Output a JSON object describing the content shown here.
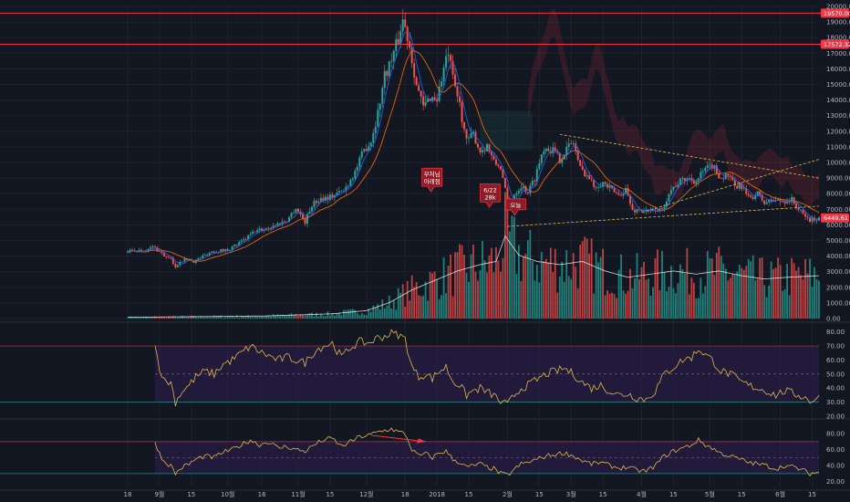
{
  "chart_data": {
    "type": "candlestick",
    "symbol_pair": "BTC/USD",
    "grid": true,
    "colors": {
      "background": "#131722",
      "up": "#26a69a",
      "down": "#ef5350",
      "resistance": "#f23645",
      "ma_fast": "#2962ff",
      "ma_slow": "#ff6d00",
      "oscillator": "#e0b84c",
      "band_fill": "#2e1d4f",
      "volume_ma": "#ffffff"
    },
    "price_axis": {
      "ylim": [
        0,
        20000
      ],
      "ticks": [
        "20000.00",
        "19000.00",
        "18000.00",
        "17000.00",
        "16000.00",
        "15000.00",
        "14000.00",
        "13000.00",
        "12000.00",
        "11000.00",
        "10000.00",
        "9000.00",
        "8000.00",
        "7000.00",
        "6000.00",
        "5000.00",
        "4000.00",
        "3000.00",
        "2000.00",
        "1000.00",
        "0.00"
      ],
      "tick_values": [
        20000,
        19000,
        18000,
        17000,
        16000,
        15000,
        14000,
        13000,
        12000,
        11000,
        10000,
        9000,
        8000,
        7000,
        6000,
        5000,
        4000,
        3000,
        2000,
        1000,
        0
      ]
    },
    "price_tags": [
      {
        "label": "19570.00",
        "value": 19570
      },
      {
        "label": "17572.32",
        "value": 17572
      },
      {
        "label": "6449.61",
        "value": 6450
      }
    ],
    "horizontal_levels": [
      19570,
      17572
    ],
    "x_axis": {
      "ticks": [
        {
          "label": "18",
          "t": 0
        },
        {
          "label": "9월",
          "t": 14
        },
        {
          "label": "15",
          "t": 28
        },
        {
          "label": "10월",
          "t": 44
        },
        {
          "label": "16",
          "t": 59
        },
        {
          "label": "11월",
          "t": 75
        },
        {
          "label": "15",
          "t": 89
        },
        {
          "label": "12월",
          "t": 105
        },
        {
          "label": "18",
          "t": 122
        },
        {
          "label": "2018",
          "t": 136
        },
        {
          "label": "15",
          "t": 150
        },
        {
          "label": "2월",
          "t": 167
        },
        {
          "label": "15",
          "t": 181
        },
        {
          "label": "3월",
          "t": 195
        },
        {
          "label": "15",
          "t": 209
        },
        {
          "label": "4월",
          "t": 226
        },
        {
          "label": "15",
          "t": 240
        },
        {
          "label": "5월",
          "t": 256
        },
        {
          "label": "15",
          "t": 270
        },
        {
          "label": "6월",
          "t": 287
        },
        {
          "label": "15",
          "t": 301
        }
      ],
      "t_range": [
        0,
        304
      ]
    },
    "price_path": [
      [
        0,
        4300
      ],
      [
        5,
        4350
      ],
      [
        9,
        4400
      ],
      [
        11,
        4600
      ],
      [
        14,
        4300
      ],
      [
        17,
        3900
      ],
      [
        19,
        3800
      ],
      [
        21,
        3250
      ],
      [
        23,
        3700
      ],
      [
        27,
        3800
      ],
      [
        29,
        3650
      ],
      [
        32,
        3900
      ],
      [
        37,
        4300
      ],
      [
        44,
        4400
      ],
      [
        50,
        4900
      ],
      [
        56,
        5600
      ],
      [
        62,
        5800
      ],
      [
        65,
        6000
      ],
      [
        70,
        6300
      ],
      [
        74,
        7100
      ],
      [
        78,
        6200
      ],
      [
        81,
        7300
      ],
      [
        85,
        7700
      ],
      [
        89,
        7800
      ],
      [
        95,
        8200
      ],
      [
        100,
        9400
      ],
      [
        104,
        10800
      ],
      [
        107,
        11400
      ],
      [
        110,
        13200
      ],
      [
        113,
        15600
      ],
      [
        116,
        16600
      ],
      [
        119,
        17900
      ],
      [
        121,
        19200
      ],
      [
        124,
        17500
      ],
      [
        127,
        15000
      ],
      [
        130,
        13500
      ],
      [
        133,
        14200
      ],
      [
        136,
        14100
      ],
      [
        139,
        16000
      ],
      [
        141,
        17000
      ],
      [
        143,
        15300
      ],
      [
        146,
        13700
      ],
      [
        149,
        11300
      ],
      [
        152,
        11800
      ],
      [
        155,
        10700
      ],
      [
        158,
        11100
      ],
      [
        161,
        10000
      ],
      [
        164,
        9700
      ],
      [
        166,
        8200
      ],
      [
        168,
        6900
      ],
      [
        170,
        8000
      ],
      [
        173,
        8500
      ],
      [
        176,
        8100
      ],
      [
        179,
        9000
      ],
      [
        183,
        11000
      ],
      [
        187,
        10800
      ],
      [
        190,
        10200
      ],
      [
        193,
        10900
      ],
      [
        196,
        11300
      ],
      [
        199,
        9600
      ],
      [
        202,
        9200
      ],
      [
        205,
        8500
      ],
      [
        209,
        8700
      ],
      [
        213,
        8200
      ],
      [
        216,
        7900
      ],
      [
        219,
        8300
      ],
      [
        222,
        6900
      ],
      [
        225,
        7000
      ],
      [
        229,
        6800
      ],
      [
        232,
        7000
      ],
      [
        235,
        6900
      ],
      [
        238,
        8100
      ],
      [
        242,
        8700
      ],
      [
        246,
        9000
      ],
      [
        250,
        8800
      ],
      [
        253,
        9400
      ],
      [
        257,
        9800
      ],
      [
        261,
        9000
      ],
      [
        264,
        9200
      ],
      [
        267,
        8400
      ],
      [
        270,
        8500
      ],
      [
        273,
        7700
      ],
      [
        277,
        8000
      ],
      [
        280,
        7400
      ],
      [
        284,
        7600
      ],
      [
        288,
        7500
      ],
      [
        292,
        7600
      ],
      [
        296,
        6800
      ],
      [
        300,
        6300
      ],
      [
        304,
        6450
      ]
    ],
    "volume_path": [
      [
        0,
        40
      ],
      [
        30,
        60
      ],
      [
        60,
        80
      ],
      [
        90,
        150
      ],
      [
        105,
        250
      ],
      [
        115,
        500
      ],
      [
        125,
        900
      ],
      [
        135,
        1200
      ],
      [
        145,
        1500
      ],
      [
        155,
        1700
      ],
      [
        162,
        1800
      ],
      [
        166,
        2600
      ],
      [
        172,
        2000
      ],
      [
        180,
        1800
      ],
      [
        190,
        1700
      ],
      [
        200,
        1800
      ],
      [
        210,
        1500
      ],
      [
        220,
        1300
      ],
      [
        230,
        1400
      ],
      [
        240,
        1500
      ],
      [
        250,
        1400
      ],
      [
        260,
        1500
      ],
      [
        270,
        1350
      ],
      [
        280,
        1250
      ],
      [
        290,
        1300
      ],
      [
        304,
        1350
      ]
    ],
    "volume_ylim": [
      0,
      4000
    ],
    "annotations": [
      {
        "text": [
          "부처님",
          "아래점"
        ],
        "t": 127,
        "price": 8000
      },
      {
        "text": [
          "6/22",
          "28k"
        ],
        "t": 151,
        "price": 7000
      },
      {
        "text": [
          "오늘"
        ],
        "t": 167,
        "price": 6500
      }
    ],
    "rsi": {
      "ylim": [
        20,
        85
      ],
      "ticks": [
        "80.00",
        "70.00",
        "60.00",
        "50.00",
        "40.00",
        "30.00",
        "20.00"
      ],
      "tick_values": [
        80,
        70,
        60,
        50,
        40,
        30,
        20
      ],
      "band": [
        30,
        70
      ],
      "path": [
        [
          12,
          70
        ],
        [
          14,
          55
        ],
        [
          16,
          45
        ],
        [
          19,
          44
        ],
        [
          21,
          30
        ],
        [
          24,
          38
        ],
        [
          27,
          42
        ],
        [
          30,
          48
        ],
        [
          34,
          52
        ],
        [
          38,
          50
        ],
        [
          42,
          57
        ],
        [
          46,
          60
        ],
        [
          50,
          65
        ],
        [
          54,
          70
        ],
        [
          58,
          66
        ],
        [
          62,
          63
        ],
        [
          66,
          60
        ],
        [
          70,
          62
        ],
        [
          74,
          60
        ],
        [
          78,
          58
        ],
        [
          82,
          66
        ],
        [
          86,
          70
        ],
        [
          90,
          72
        ],
        [
          94,
          62
        ],
        [
          98,
          69
        ],
        [
          102,
          73
        ],
        [
          106,
          72
        ],
        [
          110,
          76
        ],
        [
          113,
          77
        ],
        [
          116,
          79
        ],
        [
          119,
          78
        ],
        [
          122,
          75
        ],
        [
          125,
          55
        ],
        [
          128,
          48
        ],
        [
          131,
          50
        ],
        [
          134,
          47
        ],
        [
          137,
          52
        ],
        [
          140,
          55
        ],
        [
          143,
          45
        ],
        [
          146,
          42
        ],
        [
          149,
          35
        ],
        [
          152,
          38
        ],
        [
          155,
          40
        ],
        [
          158,
          37
        ],
        [
          161,
          35
        ],
        [
          164,
          30
        ],
        [
          167,
          28
        ],
        [
          170,
          35
        ],
        [
          173,
          40
        ],
        [
          176,
          42
        ],
        [
          180,
          46
        ],
        [
          184,
          50
        ],
        [
          188,
          52
        ],
        [
          192,
          54
        ],
        [
          196,
          50
        ],
        [
          200,
          44
        ],
        [
          204,
          40
        ],
        [
          208,
          42
        ],
        [
          212,
          38
        ],
        [
          216,
          35
        ],
        [
          220,
          36
        ],
        [
          224,
          33
        ],
        [
          228,
          32
        ],
        [
          232,
          38
        ],
        [
          236,
          50
        ],
        [
          240,
          55
        ],
        [
          244,
          60
        ],
        [
          248,
          62
        ],
        [
          251,
          68
        ],
        [
          254,
          64
        ],
        [
          257,
          60
        ],
        [
          261,
          52
        ],
        [
          265,
          50
        ],
        [
          269,
          45
        ],
        [
          273,
          42
        ],
        [
          277,
          40
        ],
        [
          281,
          38
        ],
        [
          285,
          35
        ],
        [
          289,
          38
        ],
        [
          293,
          36
        ],
        [
          297,
          34
        ],
        [
          300,
          31
        ],
        [
          304,
          33
        ]
      ]
    },
    "oscillator2": {
      "ylim": [
        15,
        95
      ],
      "ticks": [
        "80.00",
        "60.00",
        "40.00",
        "20.00"
      ],
      "tick_values": [
        80,
        60,
        40,
        20
      ],
      "band": [
        30,
        70
      ],
      "path": [
        [
          12,
          70
        ],
        [
          14,
          55
        ],
        [
          16,
          45
        ],
        [
          19,
          40
        ],
        [
          21,
          30
        ],
        [
          24,
          38
        ],
        [
          27,
          42
        ],
        [
          30,
          48
        ],
        [
          34,
          52
        ],
        [
          38,
          50
        ],
        [
          42,
          57
        ],
        [
          46,
          60
        ],
        [
          50,
          66
        ],
        [
          54,
          72
        ],
        [
          58,
          66
        ],
        [
          62,
          70
        ],
        [
          66,
          62
        ],
        [
          70,
          64
        ],
        [
          74,
          60
        ],
        [
          78,
          58
        ],
        [
          82,
          66
        ],
        [
          86,
          72
        ],
        [
          90,
          74
        ],
        [
          94,
          64
        ],
        [
          98,
          70
        ],
        [
          102,
          76
        ],
        [
          106,
          78
        ],
        [
          110,
          82
        ],
        [
          113,
          84
        ],
        [
          116,
          86
        ],
        [
          119,
          82
        ],
        [
          122,
          80
        ],
        [
          125,
          60
        ],
        [
          128,
          52
        ],
        [
          131,
          55
        ],
        [
          134,
          50
        ],
        [
          137,
          56
        ],
        [
          140,
          58
        ],
        [
          143,
          48
        ],
        [
          146,
          44
        ],
        [
          149,
          38
        ],
        [
          152,
          40
        ],
        [
          155,
          42
        ],
        [
          158,
          38
        ],
        [
          161,
          36
        ],
        [
          164,
          30
        ],
        [
          167,
          28
        ],
        [
          170,
          35
        ],
        [
          173,
          42
        ],
        [
          176,
          44
        ],
        [
          180,
          48
        ],
        [
          184,
          52
        ],
        [
          188,
          54
        ],
        [
          192,
          56
        ],
        [
          196,
          52
        ],
        [
          200,
          46
        ],
        [
          204,
          42
        ],
        [
          208,
          44
        ],
        [
          212,
          40
        ],
        [
          216,
          37
        ],
        [
          220,
          38
        ],
        [
          224,
          34
        ],
        [
          228,
          33
        ],
        [
          232,
          40
        ],
        [
          236,
          52
        ],
        [
          240,
          58
        ],
        [
          244,
          62
        ],
        [
          248,
          66
        ],
        [
          251,
          72
        ],
        [
          254,
          66
        ],
        [
          257,
          62
        ],
        [
          261,
          55
        ],
        [
          265,
          52
        ],
        [
          269,
          48
        ],
        [
          273,
          44
        ],
        [
          277,
          42
        ],
        [
          281,
          40
        ],
        [
          285,
          36
        ],
        [
          289,
          40
        ],
        [
          293,
          38
        ],
        [
          297,
          34
        ],
        [
          300,
          30
        ],
        [
          304,
          32
        ]
      ]
    }
  }
}
